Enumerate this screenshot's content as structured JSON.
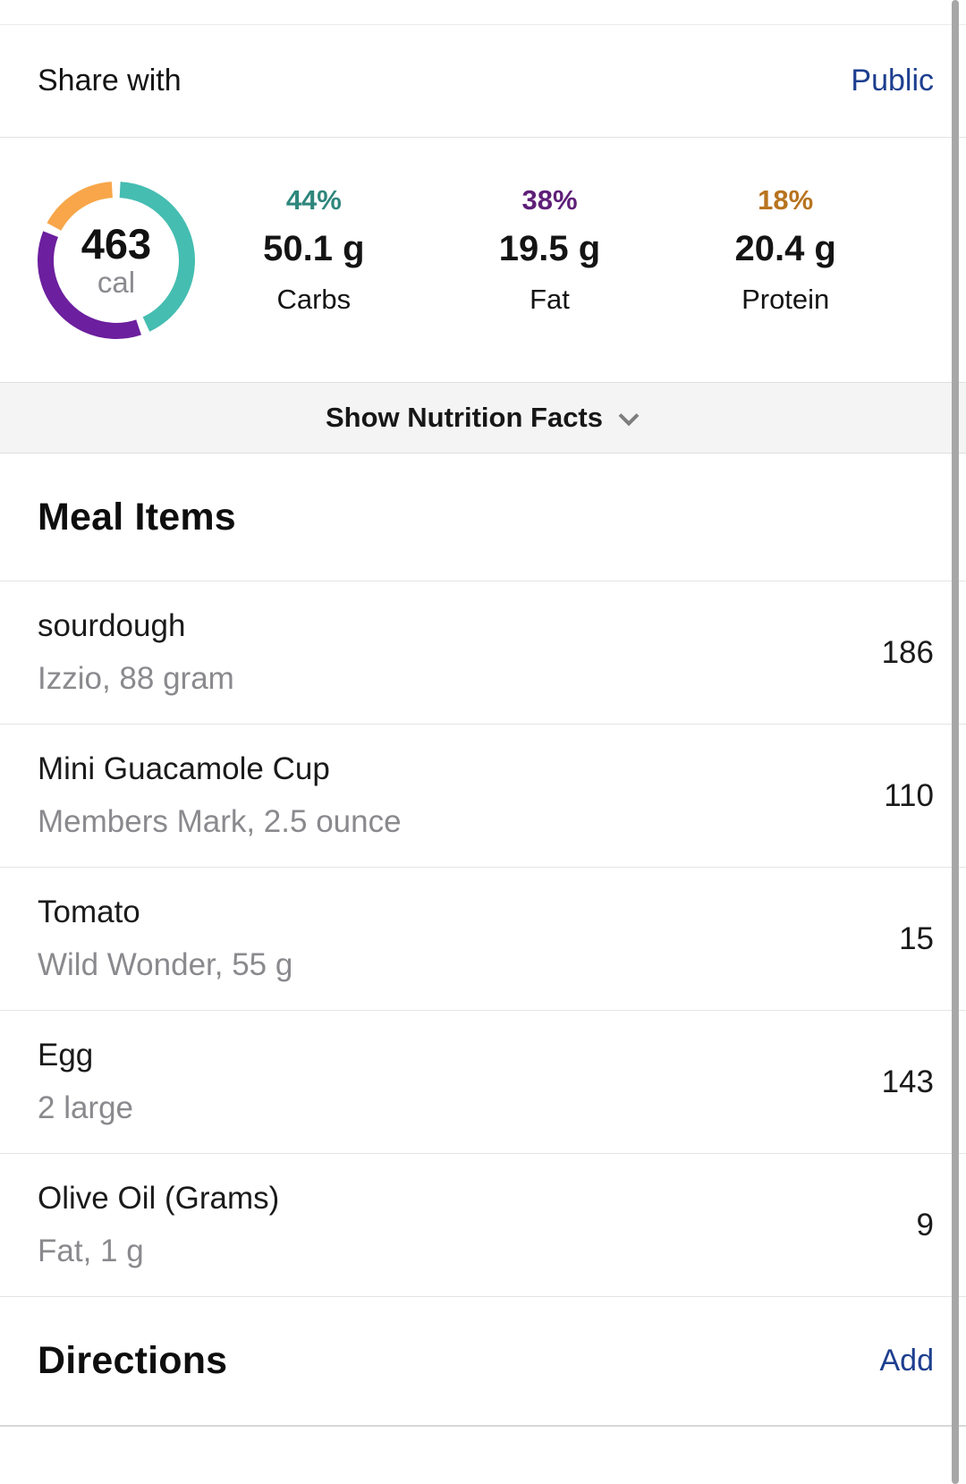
{
  "share": {
    "label": "Share with",
    "value": "Public"
  },
  "summary": {
    "calories": "463",
    "calories_unit": "cal",
    "macros": [
      {
        "percent": "44%",
        "grams": "50.1 g",
        "label": "Carbs",
        "text_color": "#2e867c",
        "ring_color": "#45bdb1"
      },
      {
        "percent": "38%",
        "grams": "19.5 g",
        "label": "Fat",
        "text_color": "#5e1f78",
        "ring_color": "#6c1f9e"
      },
      {
        "percent": "18%",
        "grams": "20.4 g",
        "label": "Protein",
        "text_color": "#b8741f",
        "ring_color": "#f8a649"
      }
    ]
  },
  "chart_data": {
    "type": "pie",
    "title": "Calorie macro breakdown donut",
    "center_value": 463,
    "center_unit": "cal",
    "series": [
      {
        "name": "Carbs",
        "percent": 44,
        "grams": 50.1,
        "color": "#45bdb1"
      },
      {
        "name": "Fat",
        "percent": 38,
        "grams": 19.5,
        "color": "#6c1f9e"
      },
      {
        "name": "Protein",
        "percent": 18,
        "grams": 20.4,
        "color": "#f8a649"
      }
    ],
    "legend_position": "right-columns",
    "donut": true
  },
  "nutrition_toggle": {
    "label": "Show Nutrition Facts"
  },
  "meal_items": {
    "heading": "Meal Items",
    "items": [
      {
        "name": "sourdough",
        "detail": "Izzio, 88 gram",
        "calories": "186"
      },
      {
        "name": "Mini Guacamole Cup",
        "detail": "Members Mark, 2.5 ounce",
        "calories": "110"
      },
      {
        "name": "Tomato",
        "detail": "Wild Wonder, 55 g",
        "calories": "15"
      },
      {
        "name": "Egg",
        "detail": "2 large",
        "calories": "143"
      },
      {
        "name": "Olive Oil (Grams)",
        "detail": "Fat, 1 g",
        "calories": "9"
      }
    ]
  },
  "directions": {
    "heading": "Directions",
    "action": "Add"
  },
  "colors": {
    "link": "#1d3e8f",
    "divider": "#e4e4e4",
    "band_bg": "#f4f4f5",
    "scrollbar": "#a7a7a7"
  }
}
